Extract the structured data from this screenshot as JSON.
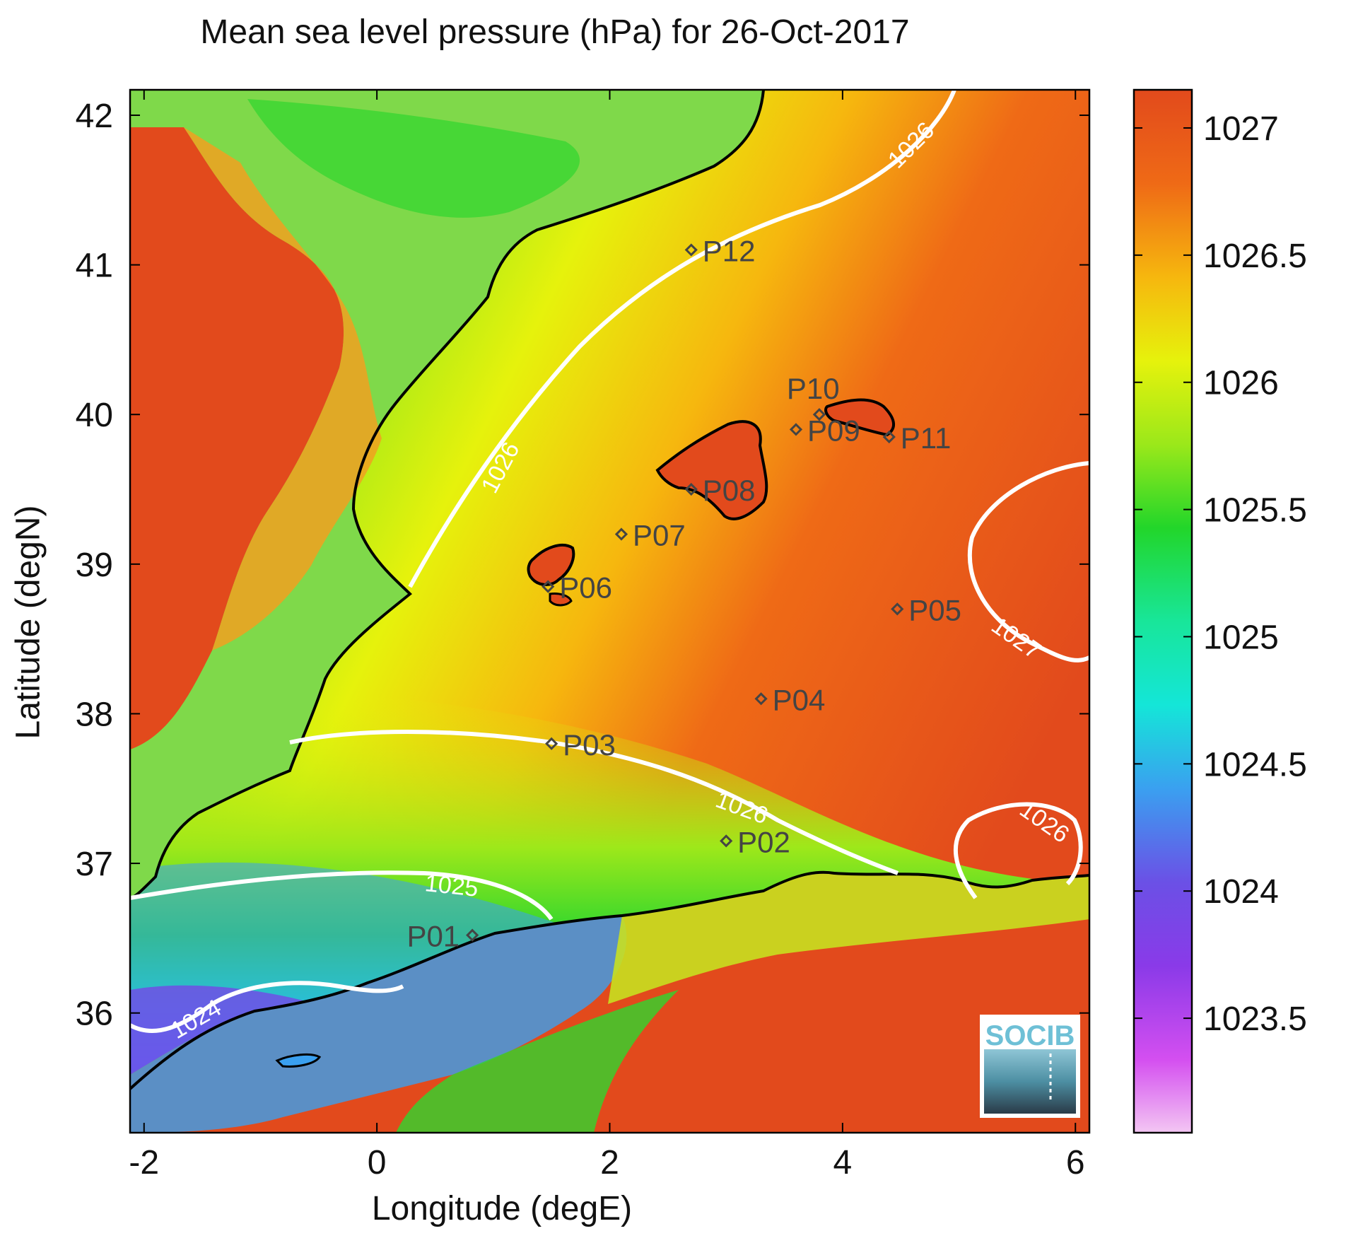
{
  "title": "Mean sea level pressure (hPa) for 26-Oct-2017",
  "xlabel": "Longitude (degE)",
  "ylabel": "Latitude (degN)",
  "x_ticks": [
    "-2",
    "0",
    "2",
    "4",
    "6"
  ],
  "y_ticks": [
    "42",
    "41",
    "40",
    "39",
    "38",
    "37",
    "36"
  ],
  "colorbar_ticks": [
    "1027",
    "1026.5",
    "1026",
    "1025.5",
    "1025",
    "1024.5",
    "1024",
    "1023.5"
  ],
  "logo_text": "SOCIB",
  "contour_labels": [
    "1026",
    "1026",
    "1026",
    "1026",
    "1025",
    "1024",
    "1027"
  ],
  "stations": [
    {
      "id": "P01",
      "lon": 0.82,
      "lat": 36.52
    },
    {
      "id": "P02",
      "lon": 3.0,
      "lat": 37.15
    },
    {
      "id": "P03",
      "lon": 1.5,
      "lat": 37.8
    },
    {
      "id": "P04",
      "lon": 3.3,
      "lat": 38.1
    },
    {
      "id": "P05",
      "lon": 4.47,
      "lat": 38.7
    },
    {
      "id": "P06",
      "lon": 1.47,
      "lat": 38.85
    },
    {
      "id": "P07",
      "lon": 2.1,
      "lat": 39.2
    },
    {
      "id": "P08",
      "lon": 2.7,
      "lat": 39.5
    },
    {
      "id": "P09",
      "lon": 3.6,
      "lat": 39.9
    },
    {
      "id": "P10",
      "lon": 3.8,
      "lat": 40.0
    },
    {
      "id": "P11",
      "lon": 4.4,
      "lat": 39.85
    },
    {
      "id": "P12",
      "lon": 2.7,
      "lat": 41.1
    }
  ],
  "colors": {
    "high": "#e24a1c",
    "mid_high": "#f49a10",
    "mid": "#e6f20c",
    "mid_low": "#2fd62e",
    "low": "#14e6c0",
    "lower": "#3aa0f0",
    "lowest": "#7a3fe8",
    "min": "#f0b0f0",
    "contour": "#ffffff",
    "coast": "#000000"
  }
}
